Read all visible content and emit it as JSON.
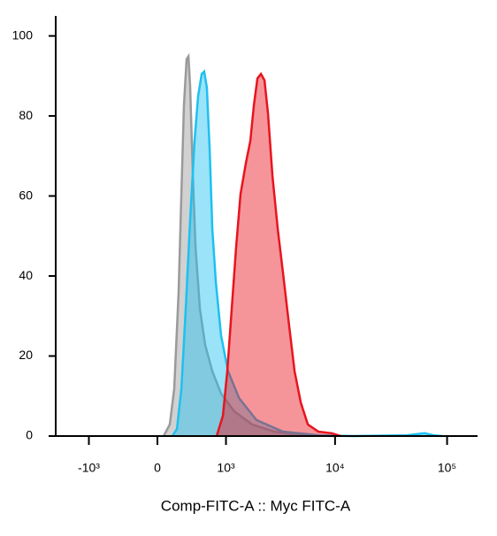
{
  "chart_data": {
    "type": "histogram-overlay",
    "x_label": "Comp-FITC-A :: Myc FITC-A",
    "xscale": "biexponential",
    "xlim": [
      -2070,
      187000
    ],
    "xticks": [
      {
        "value": -1000,
        "label": "-10³"
      },
      0,
      {
        "value": 1000,
        "label": "10³"
      },
      {
        "value": 10000,
        "label": "10⁴"
      },
      {
        "value": 100000,
        "label": "10⁵"
      }
    ],
    "ylim": [
      0,
      105
    ],
    "yticks": [
      0,
      20,
      40,
      60,
      80,
      100
    ],
    "series": [
      {
        "color": "#9a9a9a",
        "x": [
          66,
          134,
          183,
          234,
          266,
          298,
          331,
          354,
          377,
          413,
          450,
          514,
          596,
          719,
          892,
          1206,
          1784,
          2846,
          4936,
          10234
        ],
        "values": [
          0,
          2.9,
          11.8,
          36.1,
          60.5,
          82.7,
          94.2,
          94.9,
          87.4,
          65,
          47.2,
          31.7,
          22.8,
          16.2,
          10.6,
          6.2,
          2.9,
          1.1,
          0.2,
          0
        ]
      },
      {
        "color": "#1ec0f0",
        "x": [
          163,
          214,
          266,
          320,
          377,
          437,
          487,
          542,
          581,
          623,
          672,
          719,
          785,
          892,
          1050,
          1342,
          1955,
          3416,
          7103,
          14716,
          43784,
          62920,
          75400,
          91000
        ],
        "values": [
          0,
          1.8,
          11.8,
          31.7,
          53.9,
          73.8,
          84.9,
          90.5,
          91.1,
          87.1,
          71.6,
          51.7,
          38.4,
          25.1,
          16.2,
          9.5,
          4.0,
          1.1,
          0.2,
          0,
          0.2,
          0.7,
          0.2,
          0
        ]
      },
      {
        "color": "#e8141e",
        "x": [
          801,
          931,
          1030,
          1139,
          1258,
          1388,
          1560,
          1716,
          1851,
          1997,
          2153,
          2319,
          2496,
          2740,
          3063,
          3416,
          3884,
          4342,
          4935,
          5710,
          7103,
          9339,
          11211
        ],
        "values": [
          0,
          5.1,
          16.2,
          31.7,
          47.2,
          60.5,
          68.3,
          73.8,
          82.7,
          89.4,
          90.5,
          88.9,
          80.5,
          65,
          51.7,
          40.6,
          27.3,
          16.2,
          8.4,
          2.9,
          1.1,
          0.7,
          0
        ]
      }
    ]
  }
}
